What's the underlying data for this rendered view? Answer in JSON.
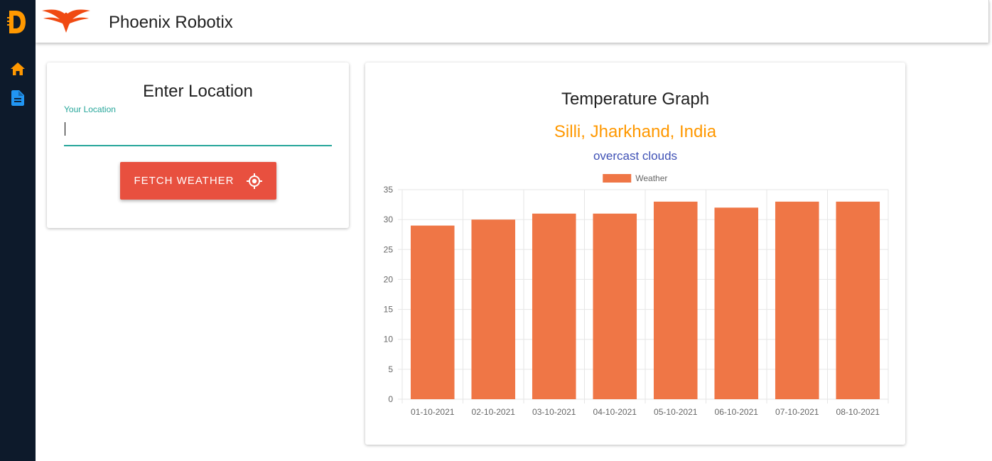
{
  "app": {
    "title": "Phoenix Robotix"
  },
  "sidebar": {
    "items": [
      {
        "name": "home",
        "icon": "home-icon",
        "color": "#ff9800"
      },
      {
        "name": "document",
        "icon": "document-icon",
        "color": "#2196f3"
      }
    ]
  },
  "location_card": {
    "title": "Enter Location",
    "input_label": "Your Location",
    "input_value": "",
    "button_label": "FETCH WEATHER",
    "button_icon": "gps-target-icon"
  },
  "graph_card": {
    "title": "Temperature Graph",
    "place": "Silli, Jharkhand, India",
    "description": "overcast clouds"
  },
  "colors": {
    "accent": "#26a69a",
    "button": "#e8503f",
    "bar": "#ef7646",
    "place": "#ff9800",
    "description": "#3f51b5",
    "sidebar": "#0d1a2b"
  },
  "chart_data": {
    "type": "bar",
    "categories": [
      "01-10-2021",
      "02-10-2021",
      "03-10-2021",
      "04-10-2021",
      "05-10-2021",
      "06-10-2021",
      "07-10-2021",
      "08-10-2021"
    ],
    "series": [
      {
        "name": "Weather",
        "values": [
          29,
          30,
          31,
          31,
          33,
          32,
          33,
          33
        ],
        "color": "#ef7646"
      }
    ],
    "ylim": [
      0,
      35
    ],
    "yticks": [
      0,
      5,
      10,
      15,
      20,
      25,
      30,
      35
    ],
    "grid": true,
    "legend": "top-center"
  }
}
